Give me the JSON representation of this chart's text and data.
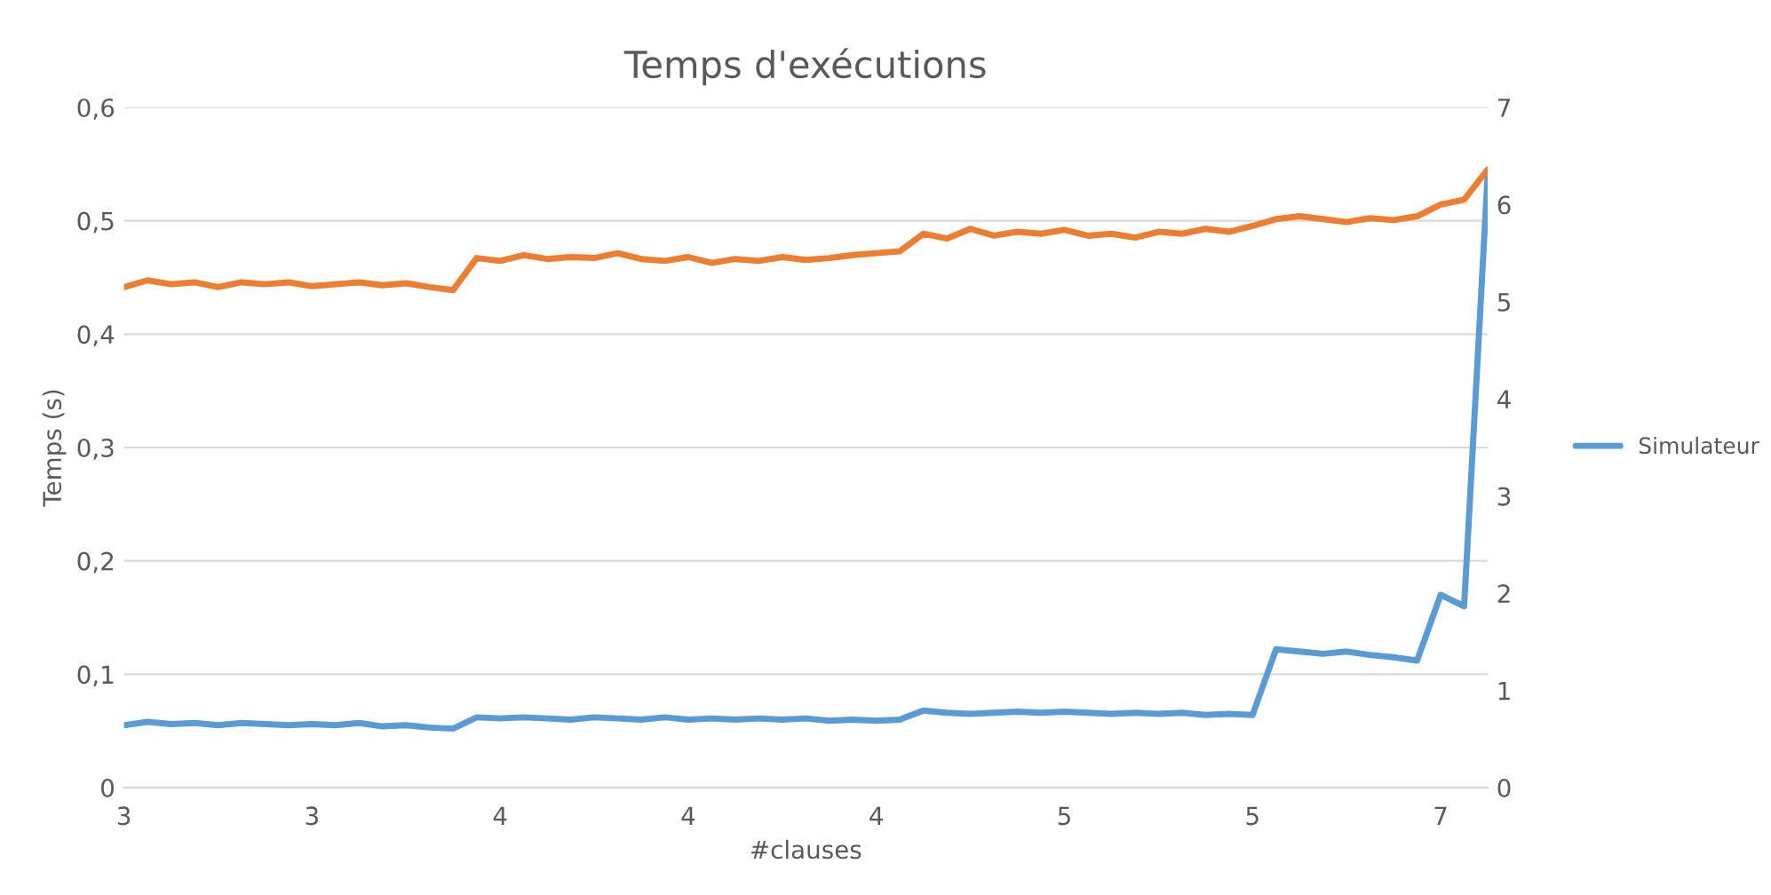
{
  "chart_data": {
    "type": "line",
    "title": "Temps d'exécutions",
    "xlabel": "#clauses",
    "ylabel": "Temps (s)",
    "categories": [
      "3",
      null,
      null,
      null,
      null,
      null,
      null,
      null,
      "3",
      null,
      null,
      null,
      null,
      null,
      null,
      null,
      "4",
      null,
      null,
      null,
      null,
      null,
      null,
      null,
      "4",
      null,
      null,
      null,
      null,
      null,
      null,
      null,
      "4",
      null,
      null,
      null,
      null,
      null,
      null,
      null,
      "5",
      null,
      null,
      null,
      null,
      null,
      null,
      null,
      "5",
      null,
      null,
      null,
      null,
      null,
      null,
      null,
      "7",
      null,
      null
    ],
    "series": [
      {
        "name": "Simulateur",
        "color": "#5b9bd5",
        "values": [
          0.055,
          0.058,
          0.056,
          0.057,
          0.055,
          0.057,
          0.056,
          0.055,
          0.056,
          0.055,
          0.057,
          0.054,
          0.055,
          0.053,
          0.052,
          0.062,
          0.061,
          0.062,
          0.061,
          0.06,
          0.062,
          0.061,
          0.06,
          0.062,
          0.06,
          0.061,
          0.06,
          0.061,
          0.06,
          0.061,
          0.059,
          0.06,
          0.059,
          0.06,
          0.068,
          0.066,
          0.065,
          0.066,
          0.067,
          0.066,
          0.067,
          0.066,
          0.065,
          0.066,
          0.065,
          0.066,
          0.064,
          0.065,
          0.064,
          0.122,
          0.12,
          0.118,
          0.12,
          0.117,
          0.115,
          0.112,
          0.17,
          0.16,
          0.54
        ]
      },
      {
        "color": "#ed7d31",
        "axis": "y2",
        "values": [
          5.15,
          5.22,
          5.18,
          5.2,
          5.15,
          5.2,
          5.18,
          5.2,
          5.16,
          5.18,
          5.2,
          5.17,
          5.19,
          5.15,
          5.12,
          5.45,
          5.42,
          5.48,
          5.44,
          5.46,
          5.45,
          5.5,
          5.44,
          5.42,
          5.46,
          5.4,
          5.44,
          5.42,
          5.46,
          5.43,
          5.45,
          5.48,
          5.5,
          5.52,
          5.7,
          5.65,
          5.75,
          5.68,
          5.72,
          5.7,
          5.74,
          5.68,
          5.7,
          5.66,
          5.72,
          5.7,
          5.75,
          5.72,
          5.78,
          5.85,
          5.88,
          5.85,
          5.82,
          5.86,
          5.84,
          5.88,
          6.0,
          6.05,
          6.36
        ]
      }
    ],
    "ylim": [
      0,
      0.6
    ],
    "yticks": [
      {
        "value": 0,
        "label": "0"
      },
      {
        "value": 0.1,
        "label": "0,1"
      },
      {
        "value": 0.2,
        "label": "0,2"
      },
      {
        "value": 0.3,
        "label": "0,3"
      },
      {
        "value": 0.4,
        "label": "0,4"
      },
      {
        "value": 0.5,
        "label": "0,5"
      },
      {
        "value": 0.6,
        "label": "0,6"
      }
    ],
    "y2lim": [
      0,
      7
    ],
    "y2ticks": [
      0,
      1,
      2,
      3,
      4,
      5,
      6,
      7
    ],
    "grid": "y",
    "legend": "right"
  }
}
